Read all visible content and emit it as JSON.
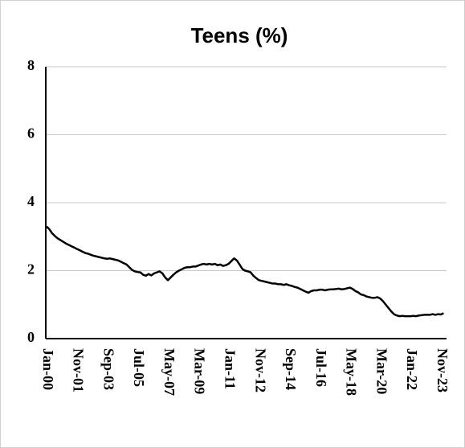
{
  "chart_data": {
    "type": "line",
    "title": "Teens (%)",
    "categories": [
      "Jan-00",
      null,
      null,
      null,
      null,
      null,
      null,
      null,
      null,
      null,
      null,
      "Nov-01",
      null,
      null,
      null,
      null,
      null,
      null,
      null,
      null,
      null,
      null,
      "Sep-03",
      null,
      null,
      null,
      null,
      null,
      null,
      null,
      null,
      null,
      null,
      "Jul-05",
      null,
      null,
      null,
      null,
      null,
      null,
      null,
      null,
      null,
      null,
      "May-07",
      null,
      null,
      null,
      null,
      null,
      null,
      null,
      null,
      null,
      null,
      "Mar-09",
      null,
      null,
      null,
      null,
      null,
      null,
      null,
      null,
      null,
      null,
      "Jan-11",
      null,
      null,
      null,
      null,
      null,
      null,
      null,
      null,
      null,
      null,
      "Nov-12",
      null,
      null,
      null,
      null,
      null,
      null,
      null,
      null,
      null,
      null,
      "Sep-14",
      null,
      null,
      null,
      null,
      null,
      null,
      null,
      null,
      null,
      null,
      "Jul-16",
      null,
      null,
      null,
      null,
      null,
      null,
      null,
      null,
      null,
      null,
      "May-18",
      null,
      null,
      null,
      null,
      null,
      null,
      null,
      null,
      null,
      null,
      "Mar-20",
      null,
      null,
      null,
      null,
      null,
      null,
      null,
      null,
      null,
      null,
      "Jan-22",
      null,
      null,
      null,
      null,
      null,
      null,
      null,
      null,
      null,
      null,
      "Nov-23",
      null
    ],
    "series": [
      {
        "color": "#000000",
        "values": [
          3.3,
          3.22,
          3.1,
          3.02,
          2.95,
          2.9,
          2.85,
          2.8,
          2.76,
          2.72,
          2.68,
          2.64,
          2.6,
          2.56,
          2.52,
          2.5,
          2.47,
          2.44,
          2.42,
          2.4,
          2.38,
          2.36,
          2.35,
          2.36,
          2.34,
          2.32,
          2.3,
          2.26,
          2.22,
          2.18,
          2.1,
          2.02,
          1.98,
          1.96,
          1.95,
          1.88,
          1.85,
          1.9,
          1.86,
          1.92,
          1.95,
          1.98,
          1.92,
          1.8,
          1.72,
          1.8,
          1.88,
          1.95,
          2.0,
          2.04,
          2.08,
          2.1,
          2.1,
          2.12,
          2.12,
          2.15,
          2.18,
          2.2,
          2.18,
          2.2,
          2.18,
          2.2,
          2.16,
          2.18,
          2.14,
          2.16,
          2.2,
          2.28,
          2.36,
          2.3,
          2.18,
          2.05,
          2.0,
          1.98,
          1.95,
          1.85,
          1.78,
          1.72,
          1.7,
          1.68,
          1.66,
          1.64,
          1.62,
          1.62,
          1.6,
          1.6,
          1.58,
          1.6,
          1.57,
          1.55,
          1.52,
          1.5,
          1.46,
          1.42,
          1.38,
          1.35,
          1.4,
          1.42,
          1.42,
          1.44,
          1.44,
          1.42,
          1.44,
          1.45,
          1.45,
          1.46,
          1.47,
          1.45,
          1.46,
          1.48,
          1.5,
          1.46,
          1.4,
          1.36,
          1.3,
          1.28,
          1.24,
          1.22,
          1.2,
          1.2,
          1.22,
          1.18,
          1.1,
          1.0,
          0.9,
          0.8,
          0.72,
          0.68,
          0.66,
          0.67,
          0.66,
          0.66,
          0.66,
          0.67,
          0.66,
          0.68,
          0.69,
          0.7,
          0.7,
          0.7,
          0.72,
          0.7,
          0.72,
          0.71,
          0.75
        ]
      }
    ],
    "ylim": [
      0,
      8
    ],
    "yticks": [
      0,
      2,
      4,
      6,
      8
    ],
    "grid": true
  }
}
